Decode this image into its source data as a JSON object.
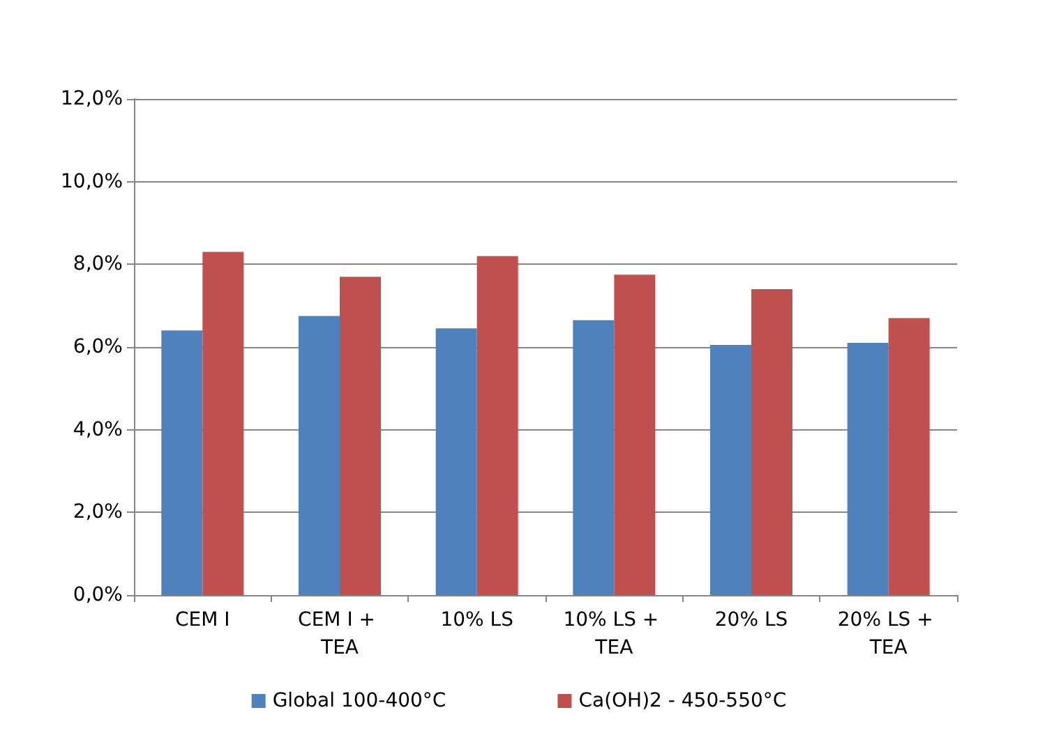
{
  "chart_data": {
    "type": "bar",
    "categories": [
      "CEM I",
      "CEM I + TEA",
      "10% LS",
      "10% LS + TEA",
      "20% LS",
      "20% LS + TEA"
    ],
    "series": [
      {
        "name": "Global 100-400°C",
        "color": "#4f81bd",
        "values": [
          6.4,
          6.75,
          6.45,
          6.65,
          6.05,
          6.1
        ]
      },
      {
        "name": "Ca(OH)2 - 450-550°C",
        "color": "#c0504d",
        "values": [
          8.3,
          7.7,
          8.2,
          7.75,
          7.4,
          6.7
        ]
      }
    ],
    "ylim": [
      0,
      12
    ],
    "yticks": [
      {
        "value": 0,
        "label": "0,0%"
      },
      {
        "value": 2,
        "label": "2,0%"
      },
      {
        "value": 4,
        "label": "4,0%"
      },
      {
        "value": 6,
        "label": "6,0%"
      },
      {
        "value": 8,
        "label": "8,0%"
      },
      {
        "value": 10,
        "label": "10,0%"
      },
      {
        "value": 12,
        "label": "12,0%"
      }
    ],
    "grid": "y",
    "legend": "bottom"
  }
}
